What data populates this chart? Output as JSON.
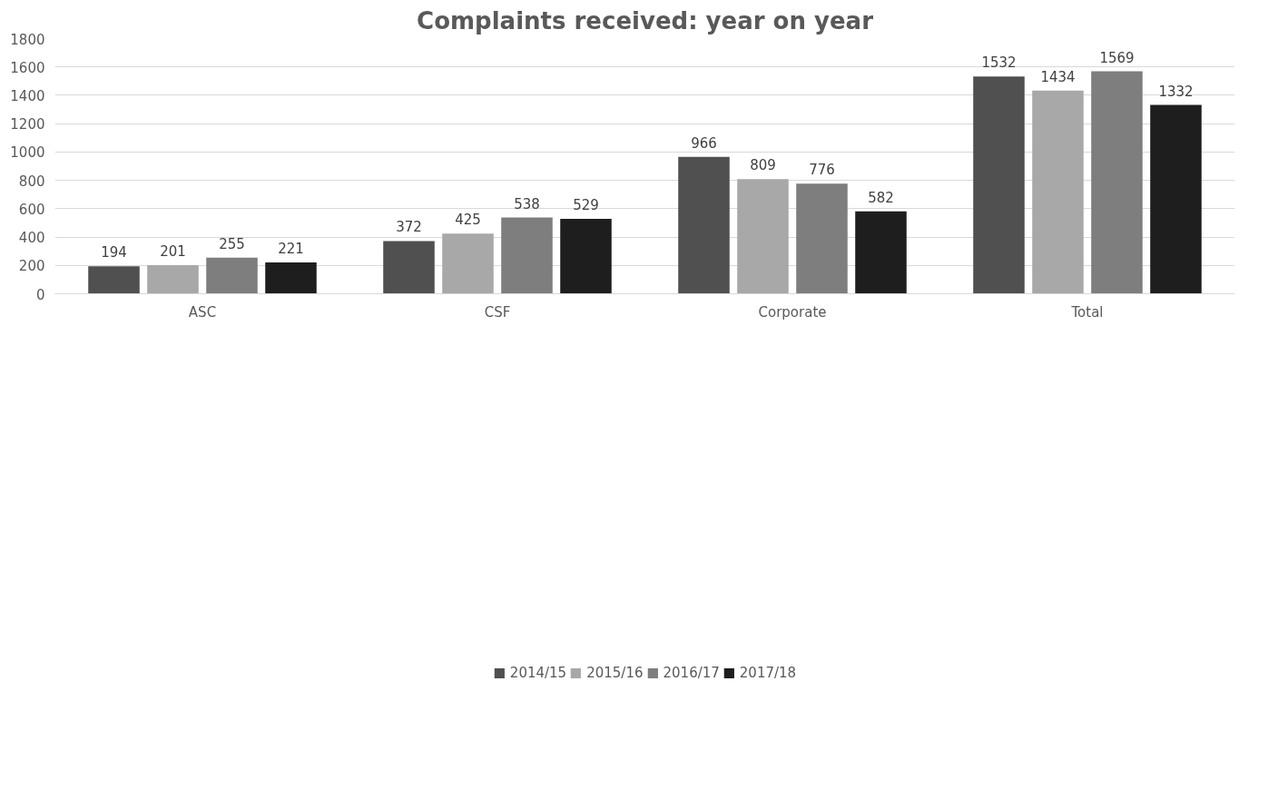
{
  "chart_data": {
    "type": "bar",
    "title": "Complaints received: year on year",
    "categories": [
      "ASC",
      "CSF",
      "Corporate",
      "Total"
    ],
    "series": [
      {
        "name": "2014/15",
        "color": "#505050",
        "values": [
          194,
          372,
          966,
          1532
        ]
      },
      {
        "name": "2015/16",
        "color": "#a8a8a8",
        "values": [
          201,
          425,
          809,
          1434
        ]
      },
      {
        "name": "2016/17",
        "color": "#7e7e7e",
        "values": [
          255,
          538,
          776,
          1569
        ]
      },
      {
        "name": "2017/18",
        "color": "#1e1e1e",
        "values": [
          221,
          529,
          582,
          1332
        ]
      }
    ],
    "ylim": [
      0,
      1800
    ],
    "yticks": [
      0,
      200,
      400,
      600,
      800,
      1000,
      1200,
      1400,
      1600,
      1800
    ],
    "grid": "y",
    "legend": "bottom",
    "data_labels": true
  }
}
